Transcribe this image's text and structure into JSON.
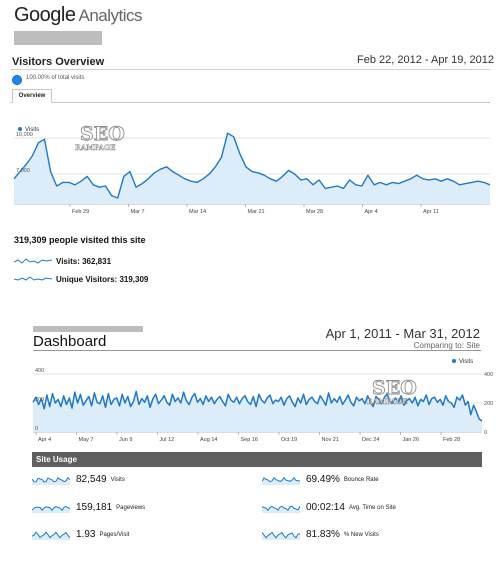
{
  "top_panel": {
    "logo": {
      "google": "Google",
      "suffix": "Analytics"
    },
    "title": "Visitors Overview",
    "date_range": "Feb 22, 2012 - Apr 19, 2012",
    "percent_text": "100.00% of total visits",
    "tab_label": "Overview",
    "summary": "319,309 people visited this site",
    "sparklines": [
      {
        "label": "Visits:",
        "value": "362,831"
      },
      {
        "label": "Unique Visitors:",
        "value": "319,309"
      }
    ],
    "watermark": {
      "big": "SEO",
      "small": "RAMPAGE"
    }
  },
  "bottom_panel": {
    "title": "Dashboard",
    "date_range": "Apr 1, 2011 - Mar 31, 2012",
    "comparing": "Comparing to: Site",
    "section_label": "Site Usage",
    "metrics": [
      {
        "value": "82,549",
        "label": "Visits"
      },
      {
        "value": "159,181",
        "label": "Pageviews"
      },
      {
        "value": "1.93",
        "label": "Pages/Visit"
      },
      {
        "value": "69.49%",
        "label": "Bounce Rate"
      },
      {
        "value": "00:02:14",
        "label": "Avg. Time on Site"
      },
      {
        "value": "81.83%",
        "label": "% New Visits"
      }
    ],
    "watermark": {
      "big": "SEO",
      "small": "RAMPAGE"
    }
  },
  "colors": {
    "line": "#1f78c8",
    "fill": "#dcecf8",
    "grid": "#e3e3e3"
  },
  "chart_data": [
    {
      "type": "area",
      "series": [
        {
          "name": "Visits",
          "values": [
            6600,
            7200,
            7800,
            8500,
            9600,
            9900,
            7200,
            6000,
            6300,
            6300,
            6100,
            6400,
            6800,
            6100,
            5900,
            6000,
            5200,
            5000,
            6800,
            7200,
            5900,
            6200,
            6600,
            7100,
            7400,
            7600,
            7200,
            6900,
            6600,
            6400,
            6300,
            6600,
            7000,
            7600,
            8400,
            10400,
            10100,
            8700,
            7600,
            7200,
            7100,
            6900,
            6600,
            6400,
            6800,
            7300,
            7000,
            6500,
            6600,
            6100,
            6500,
            5800,
            5900,
            6000,
            5800,
            6500,
            6100,
            6000,
            6900,
            6100,
            6300,
            6100,
            6300,
            6200,
            6400,
            6600,
            6900,
            6600,
            6500,
            6600,
            6400,
            6600,
            6400,
            6100,
            6200,
            6300,
            6400,
            6300,
            6100
          ]
        }
      ],
      "x_ticks": [
        "Feb 29",
        "Mar 7",
        "Mar 14",
        "Mar 21",
        "Mar 28",
        "Apr 4",
        "Apr 11"
      ],
      "y_ticks": [
        "7,000",
        "10,000"
      ],
      "ylim": [
        4500,
        11000
      ],
      "legend": "top-left"
    },
    {
      "type": "line",
      "series": [
        {
          "name": "Visits",
          "values": [
            205,
            240,
            190,
            230,
            160,
            255,
            175,
            265,
            200,
            225,
            175,
            250,
            190,
            235,
            165,
            275,
            200,
            260,
            185,
            215,
            245,
            180,
            270,
            205,
            195,
            250,
            170,
            265,
            190,
            225,
            235,
            180,
            260,
            200,
            245,
            175,
            210,
            280,
            190,
            230,
            205,
            250,
            170,
            230,
            260,
            195,
            220,
            250,
            205,
            185,
            260,
            210,
            235,
            200,
            275,
            215,
            190,
            240,
            265,
            205,
            230,
            190,
            250,
            210,
            240,
            195,
            225,
            245,
            210,
            180,
            260,
            220,
            205,
            240,
            195,
            230,
            250,
            210,
            190,
            245,
            175,
            260,
            220,
            200,
            235,
            255,
            195,
            220,
            210,
            240,
            185,
            230,
            250,
            205,
            175,
            235,
            200,
            260,
            190,
            225,
            240,
            210,
            195,
            250,
            220,
            185,
            270,
            200,
            230,
            205,
            245,
            190,
            220,
            255,
            205,
            180,
            240,
            215,
            230,
            195,
            250,
            205,
            175,
            245,
            225,
            195,
            240,
            260,
            210,
            200,
            235,
            205,
            250,
            185,
            215,
            230,
            200,
            240,
            180,
            225,
            210,
            255,
            190,
            230,
            240,
            205,
            225,
            185,
            250,
            210,
            200,
            170,
            240,
            220,
            255,
            185,
            210,
            120,
            185,
            140,
            90,
            75
          ]
        }
      ],
      "x_ticks": [
        "Apr 4",
        "May 7",
        "Jun 9",
        "Jul 12",
        "Aug 14",
        "Sep 16",
        "Oct 19",
        "Nov 21",
        "Dec 24",
        "Jan 26",
        "Feb 28"
      ],
      "y_ticks": [
        "0",
        "200",
        "400"
      ],
      "ylim": [
        0,
        400
      ],
      "legend": "top-right"
    }
  ]
}
